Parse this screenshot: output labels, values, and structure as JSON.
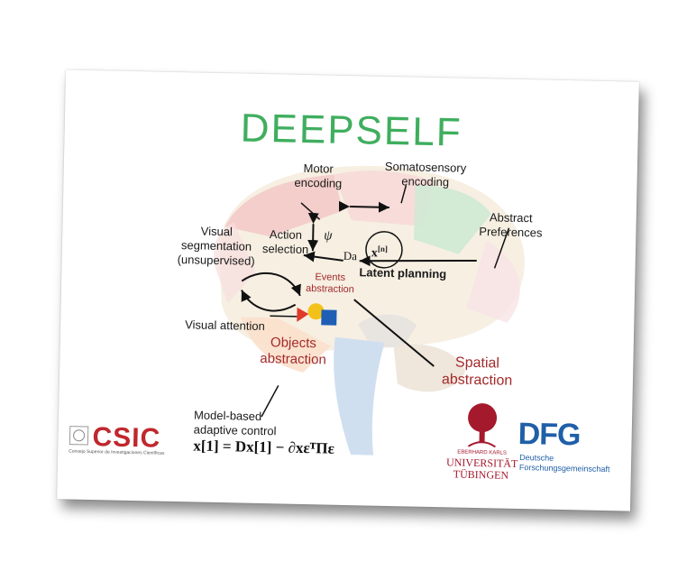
{
  "title": "DEEPSELF",
  "labels": {
    "motor": "Motor\nencoding",
    "somato": "Somatosensory\nencoding",
    "abstract_pref": "Abstract\nPreferences",
    "action_selection": "Action\nselection",
    "psi": "ψ",
    "visual_seg": "Visual\nsegmentation\n(unsupervised)",
    "xn": "x",
    "xn_sup": "[n]",
    "da": "Da",
    "latent_planning": "Latent planning",
    "events_abstraction": "Events\nabstraction",
    "visual_attention": "Visual attention",
    "objects_abstraction": "Objects\nabstraction",
    "spatial_abstraction": "Spatial\nabstraction",
    "model_based": "Model-based\nadaptive control",
    "equation": "x[1] = Dx[1] − ∂xεᵀΠε"
  },
  "logos": {
    "csic": "CSIC",
    "csic_sub": "Consejo Superior de Investigaciones Científicas",
    "tuebingen_top": "EBERHARD KARLS",
    "tuebingen_mid": "UNIVERSITÄT",
    "tuebingen_bot": "TÜBINGEN",
    "dfg": "DFG",
    "dfg_sub1": "Deutsche",
    "dfg_sub2": "Forschungsgemeinschaft"
  },
  "colors": {
    "title": "#3fae5e",
    "red_label": "#a32a2a",
    "csic_red": "#c0272d",
    "dfg_blue": "#1f5fa8",
    "tuebingen_red": "#a5192d"
  }
}
